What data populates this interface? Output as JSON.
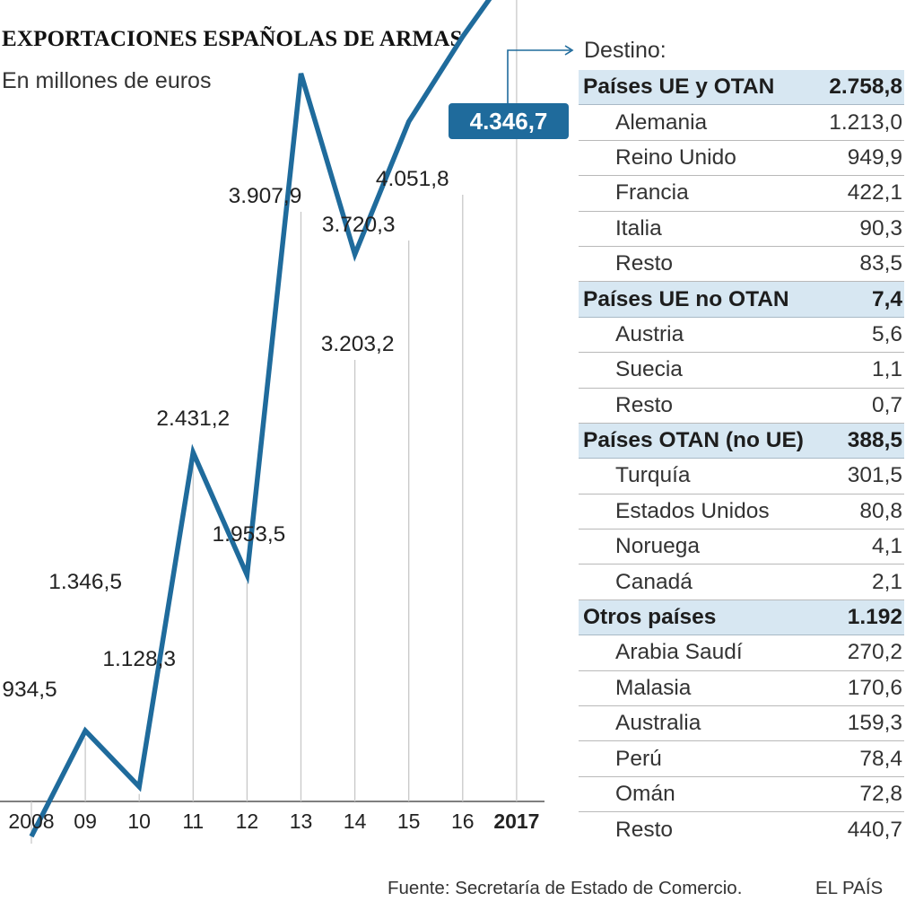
{
  "header": {
    "title": "EXPORTACIONES ESPAÑOLAS DE ARMAS",
    "subtitle": "En millones de euros"
  },
  "chart_data": {
    "type": "line",
    "title": "EXPORTACIONES ESPAÑOLAS DE ARMAS",
    "subtitle": "En millones de euros",
    "x": [
      "2008",
      "09",
      "10",
      "11",
      "12",
      "13",
      "14",
      "15",
      "16",
      "2017"
    ],
    "values": [
      934.5,
      1346.5,
      1128.3,
      2431.2,
      1953.5,
      3907.9,
      3203.2,
      3720.3,
      4051.8,
      4346.7
    ],
    "labels": [
      "934,5",
      "1.346,5",
      "1.128,3",
      "2.431,2",
      "1.953,5",
      "3.907,9",
      "3.203,2",
      "3.720,3",
      "4.051,8",
      "4.346,7"
    ],
    "highlight_index": 9,
    "line_color": "#1f6b9c",
    "grid": false,
    "legend": "none"
  },
  "table": {
    "heading": "Destino:",
    "groups": [
      {
        "name": "Países UE y OTAN",
        "value": "2.758,8",
        "items": [
          {
            "name": "Alemania",
            "value": "1.213,0"
          },
          {
            "name": "Reino Unido",
            "value": "949,9"
          },
          {
            "name": "Francia",
            "value": "422,1"
          },
          {
            "name": "Italia",
            "value": "90,3"
          },
          {
            "name": "Resto",
            "value": "83,5"
          }
        ]
      },
      {
        "name": "Países UE no OTAN",
        "value": "7,4",
        "items": [
          {
            "name": "Austria",
            "value": "5,6"
          },
          {
            "name": "Suecia",
            "value": "1,1"
          },
          {
            "name": "Resto",
            "value": "0,7"
          }
        ]
      },
      {
        "name": "Países OTAN (no UE)",
        "value": "388,5",
        "items": [
          {
            "name": "Turquía",
            "value": "301,5"
          },
          {
            "name": "Estados Unidos",
            "value": "80,8"
          },
          {
            "name": "Noruega",
            "value": "4,1"
          },
          {
            "name": "Canadá",
            "value": "2,1"
          }
        ]
      },
      {
        "name": "Otros países",
        "value": "1.192",
        "items": [
          {
            "name": "Arabia Saudí",
            "value": "270,2"
          },
          {
            "name": "Malasia",
            "value": "170,6"
          },
          {
            "name": "Australia",
            "value": "159,3"
          },
          {
            "name": "Perú",
            "value": "78,4"
          },
          {
            "name": "Omán",
            "value": "72,8"
          },
          {
            "name": "Resto",
            "value": "440,7"
          }
        ]
      }
    ]
  },
  "footer": {
    "source": "Fuente: Secretaría de Estado de Comercio.",
    "brand": "EL PAÍS"
  },
  "colors": {
    "accent": "#1f6b9c",
    "group_row_bg": "#d7e7f2"
  }
}
